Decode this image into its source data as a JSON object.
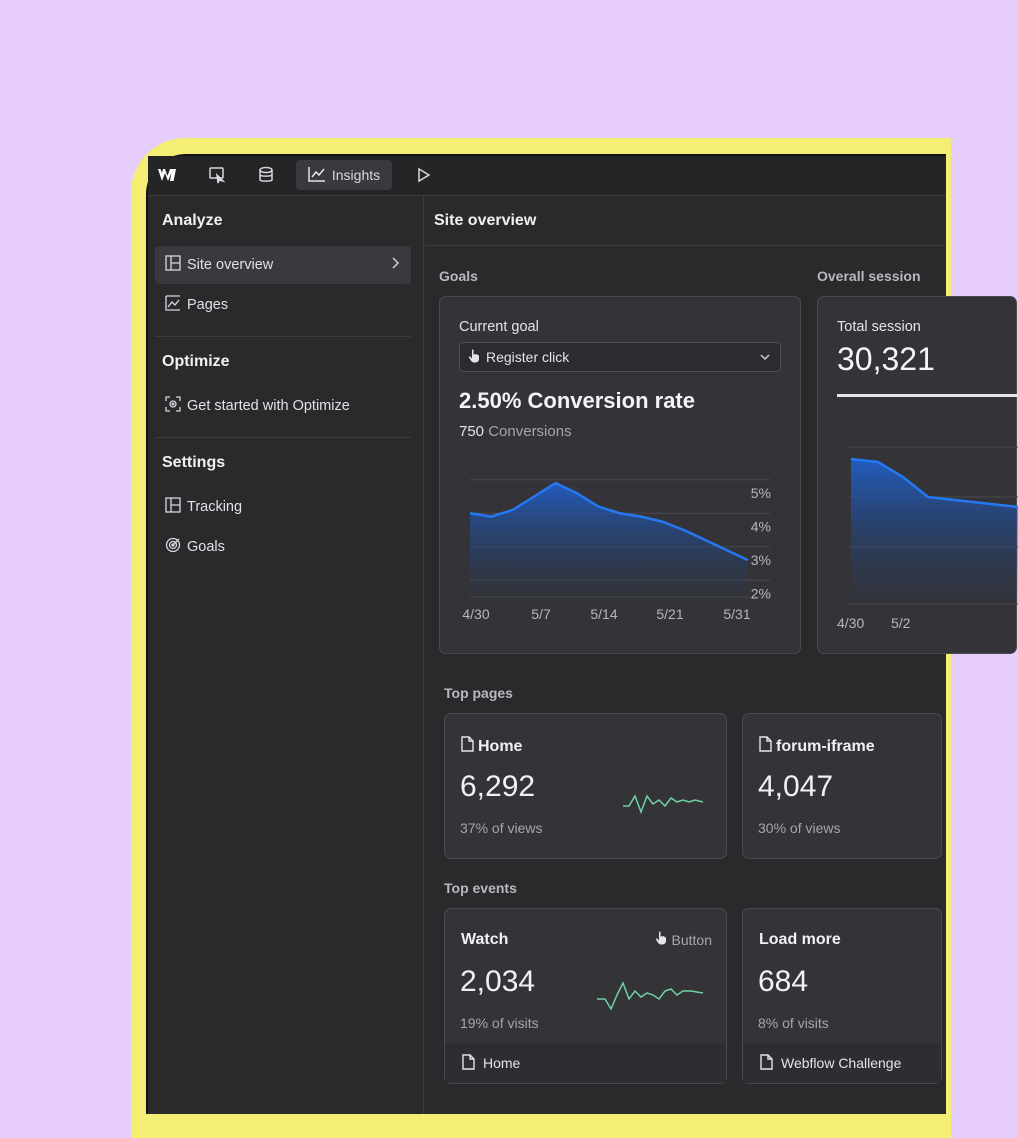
{
  "topbar": {
    "insights_label": "Insights",
    "icons": [
      "webflow-logo-icon",
      "navigator-icon",
      "database-icon",
      "line-chart-icon",
      "play-icon"
    ]
  },
  "sidebar": {
    "analyze_title": "Analyze",
    "analyze_items": [
      {
        "label": "Site overview",
        "icon": "layout-icon",
        "active": true
      },
      {
        "label": "Pages",
        "icon": "pages-chart-icon"
      }
    ],
    "optimize_title": "Optimize",
    "optimize_items": [
      {
        "label": "Get started with Optimize",
        "icon": "optimize-target-icon"
      }
    ],
    "settings_title": "Settings",
    "settings_items": [
      {
        "label": "Tracking",
        "icon": "layout-icon"
      },
      {
        "label": "Goals",
        "icon": "goal-icon"
      }
    ]
  },
  "main": {
    "title": "Site overview",
    "goals_label": "Goals",
    "overall_sessions_label": "Overall session",
    "goal_card": {
      "current_goal_label": "Current goal",
      "select_value": "Register click",
      "headline": "2.50% Conversion rate",
      "conversions_count": "750",
      "conversions_label": "Conversions"
    },
    "sessions_card": {
      "total_label": "Total session",
      "total_value": "30,321",
      "x_ticks": [
        "4/30",
        "5/2"
      ]
    },
    "top_pages_label": "Top pages",
    "top_pages": [
      {
        "title": "Home",
        "value": "6,292",
        "sub": "37% of views"
      },
      {
        "title": "forum-iframe",
        "value": "4,047",
        "sub": "30% of views"
      }
    ],
    "top_events_label": "Top events",
    "top_events": [
      {
        "title": "Watch",
        "type": "Button",
        "value": "2,034",
        "sub": "19% of visits",
        "page": "Home"
      },
      {
        "title": "Load more",
        "value": "684",
        "sub": "8% of visits",
        "page": "Webflow Challenge"
      }
    ]
  },
  "colors": {
    "accent_blue": "#1f6fe8",
    "sparkline_green": "#6fd1a3",
    "background": "#e6cdfb",
    "frame": "#f4ee75"
  },
  "chart_data": {
    "type": "area",
    "x_ticks": [
      "4/30",
      "5/7",
      "5/14",
      "5/21",
      "5/31"
    ],
    "y_ticks": [
      "5%",
      "4%",
      "3%",
      "2%"
    ],
    "ylim": [
      1.5,
      5.5
    ],
    "series": [
      {
        "values": [
          4.0,
          3.9,
          4.1,
          4.5,
          4.9,
          4.6,
          4.2,
          4.0,
          3.9,
          3.75,
          3.5,
          3.2,
          2.9,
          2.6
        ]
      }
    ]
  }
}
